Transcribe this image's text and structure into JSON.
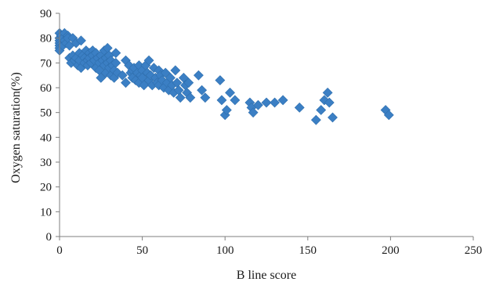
{
  "chart_data": {
    "type": "scatter",
    "xlabel": "B line score",
    "ylabel": "Oxygen saturation(%)",
    "xlim": [
      0,
      250
    ],
    "ylim": [
      0,
      90
    ],
    "x_ticks": [
      "0",
      "50",
      "100",
      "150",
      "200",
      "250"
    ],
    "y_ticks": [
      "0",
      "10",
      "20",
      "30",
      "40",
      "50",
      "60",
      "70",
      "80",
      "90"
    ],
    "grid": false,
    "legend": "none",
    "marker": "diamond",
    "marker_color": "#3b7fc4",
    "series": [
      {
        "points": [
          [
            0,
            82
          ],
          [
            0,
            80
          ],
          [
            0,
            79
          ],
          [
            0,
            78
          ],
          [
            0,
            77
          ],
          [
            0,
            76
          ],
          [
            0,
            75
          ],
          [
            1,
            81
          ],
          [
            2,
            80
          ],
          [
            2,
            77
          ],
          [
            3,
            82
          ],
          [
            3,
            79
          ],
          [
            4,
            78
          ],
          [
            5,
            81
          ],
          [
            5,
            80
          ],
          [
            6,
            72
          ],
          [
            6,
            77
          ],
          [
            7,
            70
          ],
          [
            8,
            80
          ],
          [
            8,
            73
          ],
          [
            9,
            71
          ],
          [
            10,
            78
          ],
          [
            10,
            72
          ],
          [
            11,
            69
          ],
          [
            12,
            74
          ],
          [
            12,
            71
          ],
          [
            13,
            79
          ],
          [
            13,
            68
          ],
          [
            14,
            73
          ],
          [
            15,
            72
          ],
          [
            15,
            70
          ],
          [
            16,
            75
          ],
          [
            17,
            71
          ],
          [
            17,
            69
          ],
          [
            18,
            74
          ],
          [
            18,
            72
          ],
          [
            19,
            70
          ],
          [
            20,
            75
          ],
          [
            20,
            73
          ],
          [
            21,
            71
          ],
          [
            22,
            74
          ],
          [
            22,
            68
          ],
          [
            23,
            72
          ],
          [
            24,
            70
          ],
          [
            24,
            67
          ],
          [
            25,
            73
          ],
          [
            25,
            64
          ],
          [
            26,
            71
          ],
          [
            27,
            75
          ],
          [
            27,
            69
          ],
          [
            28,
            72
          ],
          [
            28,
            66
          ],
          [
            29,
            76
          ],
          [
            29,
            70
          ],
          [
            30,
            73
          ],
          [
            30,
            68
          ],
          [
            31,
            71
          ],
          [
            31,
            65
          ],
          [
            32,
            69
          ],
          [
            33,
            67
          ],
          [
            33,
            64
          ],
          [
            34,
            74
          ],
          [
            34,
            70
          ],
          [
            35,
            66
          ],
          [
            38,
            65
          ],
          [
            40,
            71
          ],
          [
            40,
            62
          ],
          [
            42,
            69
          ],
          [
            43,
            66
          ],
          [
            44,
            67
          ],
          [
            44,
            64
          ],
          [
            45,
            68
          ],
          [
            46,
            63
          ],
          [
            47,
            66
          ],
          [
            48,
            69
          ],
          [
            48,
            62
          ],
          [
            49,
            65
          ],
          [
            50,
            67
          ],
          [
            50,
            64
          ],
          [
            51,
            61
          ],
          [
            52,
            69
          ],
          [
            53,
            66
          ],
          [
            54,
            71
          ],
          [
            54,
            63
          ],
          [
            55,
            65
          ],
          [
            56,
            61
          ],
          [
            57,
            68
          ],
          [
            58,
            64
          ],
          [
            59,
            62
          ],
          [
            60,
            67
          ],
          [
            60,
            61
          ],
          [
            61,
            65
          ],
          [
            62,
            63
          ],
          [
            63,
            60
          ],
          [
            64,
            66
          ],
          [
            65,
            62
          ],
          [
            66,
            59
          ],
          [
            67,
            64
          ],
          [
            68,
            61
          ],
          [
            69,
            58
          ],
          [
            70,
            67
          ],
          [
            71,
            62
          ],
          [
            72,
            59
          ],
          [
            73,
            56
          ],
          [
            75,
            64
          ],
          [
            76,
            61
          ],
          [
            77,
            58
          ],
          [
            78,
            62
          ],
          [
            79,
            56
          ],
          [
            84,
            65
          ],
          [
            86,
            59
          ],
          [
            88,
            56
          ],
          [
            97,
            63
          ],
          [
            98,
            55
          ],
          [
            100,
            49
          ],
          [
            101,
            51
          ],
          [
            103,
            58
          ],
          [
            106,
            55
          ],
          [
            115,
            54
          ],
          [
            116,
            52
          ],
          [
            117,
            50
          ],
          [
            120,
            53
          ],
          [
            125,
            54
          ],
          [
            130,
            54
          ],
          [
            135,
            55
          ],
          [
            145,
            52
          ],
          [
            155,
            47
          ],
          [
            158,
            51
          ],
          [
            160,
            55
          ],
          [
            162,
            58
          ],
          [
            163,
            54
          ],
          [
            165,
            48
          ],
          [
            197,
            51
          ],
          [
            199,
            49
          ]
        ]
      }
    ]
  }
}
